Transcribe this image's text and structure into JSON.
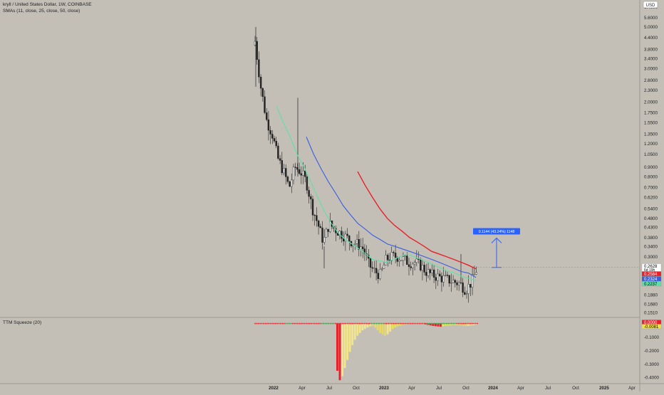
{
  "header": {
    "title": "kryll / United States Dollar, 1W, COINBASE",
    "indicator": "SMAs (11, close, 25, close, 50, close)"
  },
  "currency_label": "USD",
  "chart_data": [
    {
      "type": "candlestick",
      "title": "kryll / United States Dollar, 1W, COINBASE",
      "scale": "log",
      "ylim": [
        0.145,
        6.6
      ],
      "x_ticks": [
        "2022",
        "Apr",
        "Jul",
        "Oct",
        "2023",
        "Apr",
        "Jul",
        "Oct",
        "2024",
        "Apr",
        "Jul",
        "Oct",
        "2025",
        "Apr"
      ],
      "y_ticks": [
        "6.4000",
        "5.6000",
        "5.0000",
        "4.4000",
        "3.8000",
        "3.4000",
        "3.0000",
        "2.6000",
        "2.3000",
        "2.0000",
        "1.7500",
        "1.5500",
        "1.3500",
        "1.2000",
        "1.0500",
        "0.9000",
        "0.8000",
        "0.7000",
        "0.6200",
        "0.5400",
        "0.4800",
        "0.4300",
        "0.3800",
        "0.3400",
        "0.3000",
        "0.2628",
        "0.1880",
        "0.1680",
        "0.1510"
      ],
      "series": [
        {
          "name": "SMA 11",
          "color": "#5fe0a8",
          "values": [
            1.9,
            1.55,
            1.3,
            1.05,
            0.9,
            0.75,
            0.62,
            0.52,
            0.45,
            0.4,
            0.37,
            0.35,
            0.33,
            0.31,
            0.29,
            0.285,
            0.28,
            0.29,
            0.3,
            0.31,
            0.3,
            0.29,
            0.28,
            0.27,
            0.26,
            0.25,
            0.245,
            0.235,
            0.23,
            0.2237
          ]
        },
        {
          "name": "SMA 25",
          "color": "#3a5de0",
          "values": [
            1.3,
            1.05,
            0.88,
            0.75,
            0.65,
            0.56,
            0.5,
            0.45,
            0.42,
            0.39,
            0.37,
            0.35,
            0.34,
            0.33,
            0.32,
            0.31,
            0.3,
            0.29,
            0.28,
            0.27,
            0.26,
            0.25,
            0.245,
            0.2324
          ]
        },
        {
          "name": "SMA 50",
          "color": "#e8202a",
          "values": [
            0.85,
            0.72,
            0.62,
            0.54,
            0.48,
            0.44,
            0.41,
            0.38,
            0.36,
            0.34,
            0.32,
            0.31,
            0.3,
            0.29,
            0.28,
            0.27,
            0.2584
          ]
        }
      ],
      "price_labels": [
        {
          "text": "0.2628",
          "sub": "6d 19h",
          "color": "#ffffff",
          "fg": "#000000"
        },
        {
          "text": "0.2584",
          "color": "#e8202a",
          "fg": "#ffffff"
        },
        {
          "text": "0.2324",
          "color": "#3a5de0",
          "fg": "#ffffff"
        },
        {
          "text": "0.2237",
          "color": "#5fe0a8",
          "fg": "#000000"
        }
      ],
      "annotation": {
        "text": "0.1144 (43.24%) 1148",
        "from": 0.2628,
        "to": 0.3766
      }
    },
    {
      "type": "bar",
      "title": "TTM Squeeze (20)",
      "ylim": [
        -0.44,
        0.04
      ],
      "y_ticks": [
        "-0.1000",
        "-0.2000",
        "-0.3000",
        "-0.4000"
      ],
      "values": [
        -0.35,
        -0.42,
        -0.39,
        -0.33,
        -0.27,
        -0.21,
        -0.16,
        -0.12,
        -0.09,
        -0.07,
        -0.05,
        -0.04,
        -0.03,
        -0.02,
        -0.02,
        -0.03,
        -0.05,
        -0.07,
        -0.08,
        -0.09,
        -0.08,
        -0.06,
        -0.04,
        -0.03,
        -0.02,
        -0.015,
        -0.01,
        -0.008,
        -0.005,
        -0.004,
        -0.003,
        -0.002,
        -0.002,
        -0.003,
        -0.004,
        -0.006,
        -0.01,
        -0.014,
        -0.018,
        -0.02,
        -0.022,
        -0.024,
        -0.02,
        -0.017,
        -0.015,
        -0.014,
        -0.012,
        -0.01,
        -0.012,
        -0.014,
        -0.016,
        -0.018,
        -0.017,
        -0.014,
        -0.012,
        -0.0081
      ],
      "price_labels": [
        {
          "text": "0.0000",
          "color": "#e8202a",
          "fg": "#ffffff"
        },
        {
          "text": "-0.0081",
          "color": "#f5e04a",
          "fg": "#000000"
        }
      ]
    }
  ]
}
